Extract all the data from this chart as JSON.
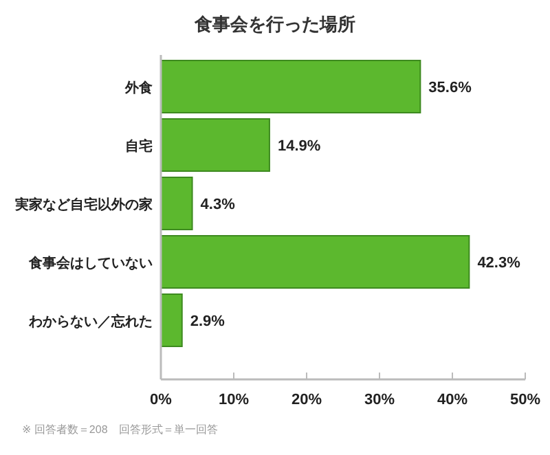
{
  "chart_data": {
    "type": "bar",
    "orientation": "horizontal",
    "title": "食事会を行った場所",
    "categories": [
      "外食",
      "自宅",
      "実家など自宅以外の家",
      "食事会はしていない",
      "わからない／忘れた"
    ],
    "values": [
      35.6,
      14.9,
      4.3,
      42.3,
      2.9
    ],
    "value_labels": [
      "35.6%",
      "14.9%",
      "4.3%",
      "42.3%",
      "2.9%"
    ],
    "color": "#5cb82e",
    "xlim": [
      0,
      50
    ],
    "xticks": [
      {
        "value": 0,
        "label": "0%"
      },
      {
        "value": 10,
        "label": "10%"
      },
      {
        "value": 20,
        "label": "20%"
      },
      {
        "value": 30,
        "label": "30%"
      },
      {
        "value": 40,
        "label": "40%"
      },
      {
        "value": 50,
        "label": "50%"
      }
    ],
    "grid": false,
    "annotations": [
      "※ 回答者数＝208　回答形式＝単一回答"
    ]
  }
}
